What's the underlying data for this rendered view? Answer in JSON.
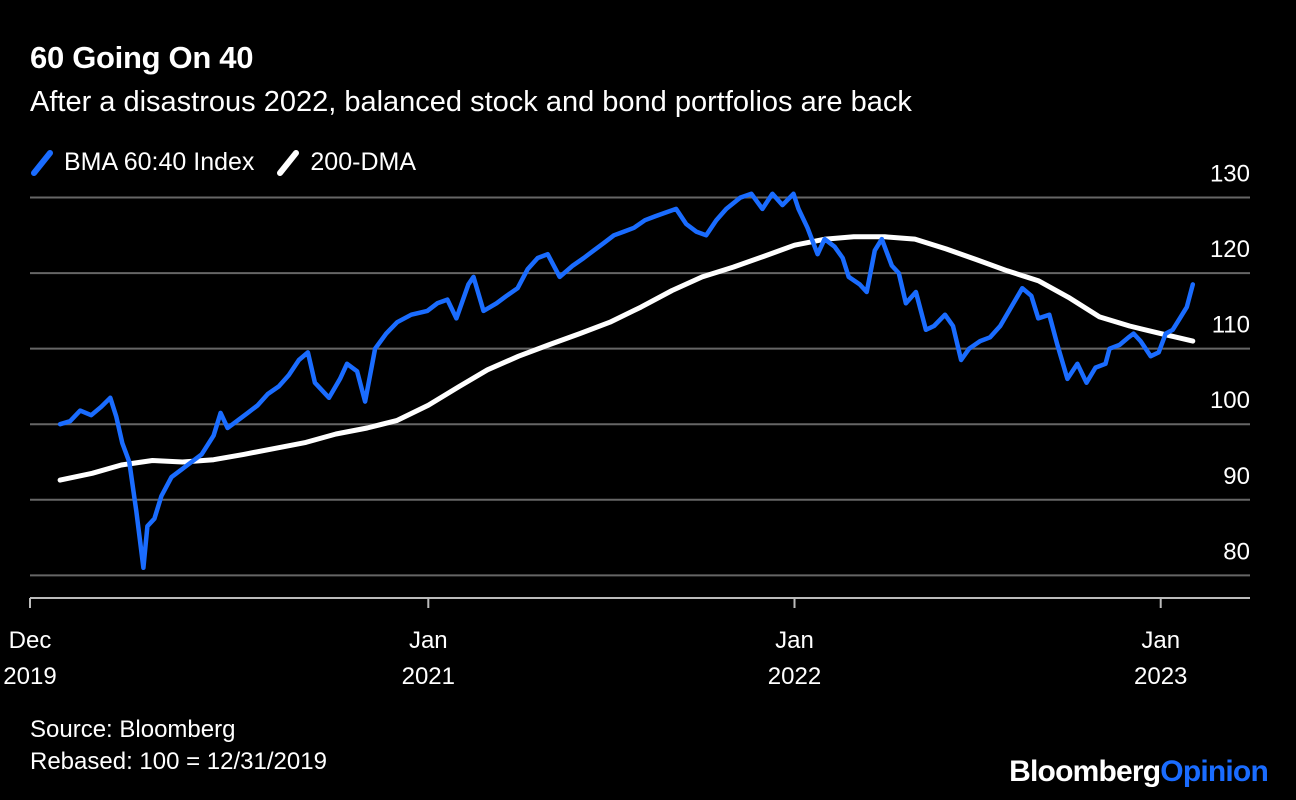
{
  "header": {
    "title": "60 Going On 40",
    "subtitle": "After a disastrous 2022, balanced stock and bond portfolios are back"
  },
  "footer": {
    "source": "Source: Bloomberg",
    "note": "Rebased: 100 = 12/31/2019",
    "brand_main": "Bloomberg",
    "brand_accent": "Opinion"
  },
  "colors": {
    "background": "#000000",
    "series_index": "#1a6cff",
    "series_dma": "#ffffff",
    "grid": "#666666",
    "brand_accent": "#1a6cff"
  },
  "chart_data": {
    "type": "line",
    "title": "60 Going On 40",
    "subtitle": "After a disastrous 2022, balanced stock and bond portfolios are back",
    "xlabel": "",
    "ylabel": "",
    "xlim": [
      "2019-12-01",
      "2023-03-31"
    ],
    "ylim": [
      77,
      131
    ],
    "yticks": [
      80,
      90,
      100,
      110,
      120,
      130
    ],
    "y_axis_side": "right",
    "xticks": [
      {
        "date": "2019-12-01",
        "line1": "Dec",
        "line2": "2019"
      },
      {
        "date": "2021-01-01",
        "line1": "Jan",
        "line2": "2021"
      },
      {
        "date": "2022-01-01",
        "line1": "Jan",
        "line2": "2022"
      },
      {
        "date": "2023-01-01",
        "line1": "Jan",
        "line2": "2023"
      }
    ],
    "grid": true,
    "legend_position": "top-left",
    "series": [
      {
        "name": "BMA 60:40 Index",
        "color": "#1a6cff",
        "points": [
          [
            "2019-12-31",
            100.0
          ],
          [
            "2020-01-10",
            100.4
          ],
          [
            "2020-01-20",
            101.8
          ],
          [
            "2020-01-31",
            101.2
          ],
          [
            "2020-02-10",
            102.3
          ],
          [
            "2020-02-19",
            103.5
          ],
          [
            "2020-02-25",
            101.0
          ],
          [
            "2020-03-02",
            97.5
          ],
          [
            "2020-03-09",
            95.0
          ],
          [
            "2020-03-16",
            88.5
          ],
          [
            "2020-03-23",
            81.0
          ],
          [
            "2020-03-27",
            86.5
          ],
          [
            "2020-04-03",
            87.5
          ],
          [
            "2020-04-10",
            90.5
          ],
          [
            "2020-04-20",
            93.0
          ],
          [
            "2020-04-30",
            94.0
          ],
          [
            "2020-05-10",
            95.0
          ],
          [
            "2020-05-20",
            96.0
          ],
          [
            "2020-06-01",
            98.5
          ],
          [
            "2020-06-08",
            101.5
          ],
          [
            "2020-06-15",
            99.5
          ],
          [
            "2020-06-25",
            100.5
          ],
          [
            "2020-07-05",
            101.5
          ],
          [
            "2020-07-15",
            102.5
          ],
          [
            "2020-07-25",
            104.0
          ],
          [
            "2020-08-05",
            105.0
          ],
          [
            "2020-08-15",
            106.5
          ],
          [
            "2020-08-25",
            108.5
          ],
          [
            "2020-09-03",
            109.5
          ],
          [
            "2020-09-10",
            105.5
          ],
          [
            "2020-09-24",
            103.5
          ],
          [
            "2020-10-05",
            106.0
          ],
          [
            "2020-10-12",
            108.0
          ],
          [
            "2020-10-22",
            107.0
          ],
          [
            "2020-10-30",
            103.0
          ],
          [
            "2020-11-09",
            110.0
          ],
          [
            "2020-11-20",
            112.0
          ],
          [
            "2020-12-01",
            113.5
          ],
          [
            "2020-12-15",
            114.5
          ],
          [
            "2020-12-31",
            115.0
          ],
          [
            "2021-01-10",
            116.0
          ],
          [
            "2021-01-20",
            116.5
          ],
          [
            "2021-01-29",
            114.0
          ],
          [
            "2021-02-10",
            118.5
          ],
          [
            "2021-02-15",
            119.5
          ],
          [
            "2021-02-25",
            115.0
          ],
          [
            "2021-03-10",
            116.0
          ],
          [
            "2021-03-20",
            117.0
          ],
          [
            "2021-03-31",
            118.0
          ],
          [
            "2021-04-10",
            120.5
          ],
          [
            "2021-04-20",
            122.0
          ],
          [
            "2021-04-30",
            122.5
          ],
          [
            "2021-05-12",
            119.5
          ],
          [
            "2021-05-25",
            121.0
          ],
          [
            "2021-06-05",
            122.0
          ],
          [
            "2021-06-15",
            123.0
          ],
          [
            "2021-06-25",
            124.0
          ],
          [
            "2021-07-05",
            125.0
          ],
          [
            "2021-07-15",
            125.5
          ],
          [
            "2021-07-25",
            126.0
          ],
          [
            "2021-08-05",
            127.0
          ],
          [
            "2021-08-15",
            127.5
          ],
          [
            "2021-08-25",
            128.0
          ],
          [
            "2021-09-05",
            128.5
          ],
          [
            "2021-09-15",
            126.5
          ],
          [
            "2021-09-25",
            125.5
          ],
          [
            "2021-10-05",
            125.0
          ],
          [
            "2021-10-15",
            127.0
          ],
          [
            "2021-10-25",
            128.5
          ],
          [
            "2021-11-08",
            130.0
          ],
          [
            "2021-11-19",
            130.5
          ],
          [
            "2021-11-30",
            128.5
          ],
          [
            "2021-12-10",
            130.5
          ],
          [
            "2021-12-20",
            129.0
          ],
          [
            "2021-12-31",
            130.5
          ],
          [
            "2022-01-05",
            128.5
          ],
          [
            "2022-01-14",
            126.0
          ],
          [
            "2022-01-24",
            122.5
          ],
          [
            "2022-01-31",
            124.5
          ],
          [
            "2022-02-10",
            123.5
          ],
          [
            "2022-02-18",
            122.0
          ],
          [
            "2022-02-24",
            119.5
          ],
          [
            "2022-03-07",
            118.5
          ],
          [
            "2022-03-14",
            117.5
          ],
          [
            "2022-03-22",
            123.0
          ],
          [
            "2022-03-29",
            124.5
          ],
          [
            "2022-04-08",
            121.0
          ],
          [
            "2022-04-15",
            120.0
          ],
          [
            "2022-04-22",
            116.0
          ],
          [
            "2022-05-02",
            117.5
          ],
          [
            "2022-05-12",
            112.5
          ],
          [
            "2022-05-20",
            113.0
          ],
          [
            "2022-05-31",
            114.5
          ],
          [
            "2022-06-08",
            113.0
          ],
          [
            "2022-06-16",
            108.5
          ],
          [
            "2022-06-24",
            110.0
          ],
          [
            "2022-07-05",
            111.0
          ],
          [
            "2022-07-15",
            111.5
          ],
          [
            "2022-07-25",
            113.0
          ],
          [
            "2022-08-05",
            115.5
          ],
          [
            "2022-08-16",
            118.0
          ],
          [
            "2022-08-25",
            117.0
          ],
          [
            "2022-09-01",
            114.0
          ],
          [
            "2022-09-12",
            114.5
          ],
          [
            "2022-09-20",
            110.5
          ],
          [
            "2022-09-30",
            106.0
          ],
          [
            "2022-10-10",
            108.0
          ],
          [
            "2022-10-19",
            105.5
          ],
          [
            "2022-10-28",
            107.5
          ],
          [
            "2022-11-07",
            108.0
          ],
          [
            "2022-11-11",
            110.0
          ],
          [
            "2022-11-21",
            110.5
          ],
          [
            "2022-11-30",
            111.5
          ],
          [
            "2022-12-05",
            112.0
          ],
          [
            "2022-12-12",
            111.0
          ],
          [
            "2022-12-22",
            109.0
          ],
          [
            "2022-12-30",
            109.5
          ],
          [
            "2023-01-06",
            112.0
          ],
          [
            "2023-01-13",
            112.5
          ],
          [
            "2023-01-20",
            114.0
          ],
          [
            "2023-01-27",
            115.5
          ],
          [
            "2023-02-02",
            118.5
          ]
        ]
      },
      {
        "name": "200-DMA",
        "color": "#ffffff",
        "points": [
          [
            "2019-12-31",
            92.6
          ],
          [
            "2020-02-01",
            93.5
          ],
          [
            "2020-03-01",
            94.6
          ],
          [
            "2020-04-01",
            95.2
          ],
          [
            "2020-05-01",
            95.0
          ],
          [
            "2020-06-01",
            95.3
          ],
          [
            "2020-07-01",
            96.0
          ],
          [
            "2020-08-01",
            96.8
          ],
          [
            "2020-09-01",
            97.6
          ],
          [
            "2020-10-01",
            98.7
          ],
          [
            "2020-11-01",
            99.5
          ],
          [
            "2020-12-01",
            100.5
          ],
          [
            "2021-01-01",
            102.5
          ],
          [
            "2021-02-01",
            105.0
          ],
          [
            "2021-03-01",
            107.2
          ],
          [
            "2021-04-01",
            109.0
          ],
          [
            "2021-05-01",
            110.5
          ],
          [
            "2021-06-01",
            112.0
          ],
          [
            "2021-07-01",
            113.5
          ],
          [
            "2021-08-01",
            115.5
          ],
          [
            "2021-09-01",
            117.7
          ],
          [
            "2021-10-01",
            119.5
          ],
          [
            "2021-11-01",
            120.8
          ],
          [
            "2021-12-01",
            122.2
          ],
          [
            "2022-01-01",
            123.7
          ],
          [
            "2022-02-01",
            124.5
          ],
          [
            "2022-03-01",
            124.8
          ],
          [
            "2022-04-01",
            124.8
          ],
          [
            "2022-05-01",
            124.5
          ],
          [
            "2022-06-01",
            123.2
          ],
          [
            "2022-07-01",
            121.8
          ],
          [
            "2022-08-01",
            120.3
          ],
          [
            "2022-09-01",
            119.0
          ],
          [
            "2022-10-01",
            116.8
          ],
          [
            "2022-11-01",
            114.2
          ],
          [
            "2022-12-01",
            113.0
          ],
          [
            "2023-01-01",
            112.0
          ],
          [
            "2023-02-02",
            111.0
          ]
        ]
      }
    ]
  }
}
